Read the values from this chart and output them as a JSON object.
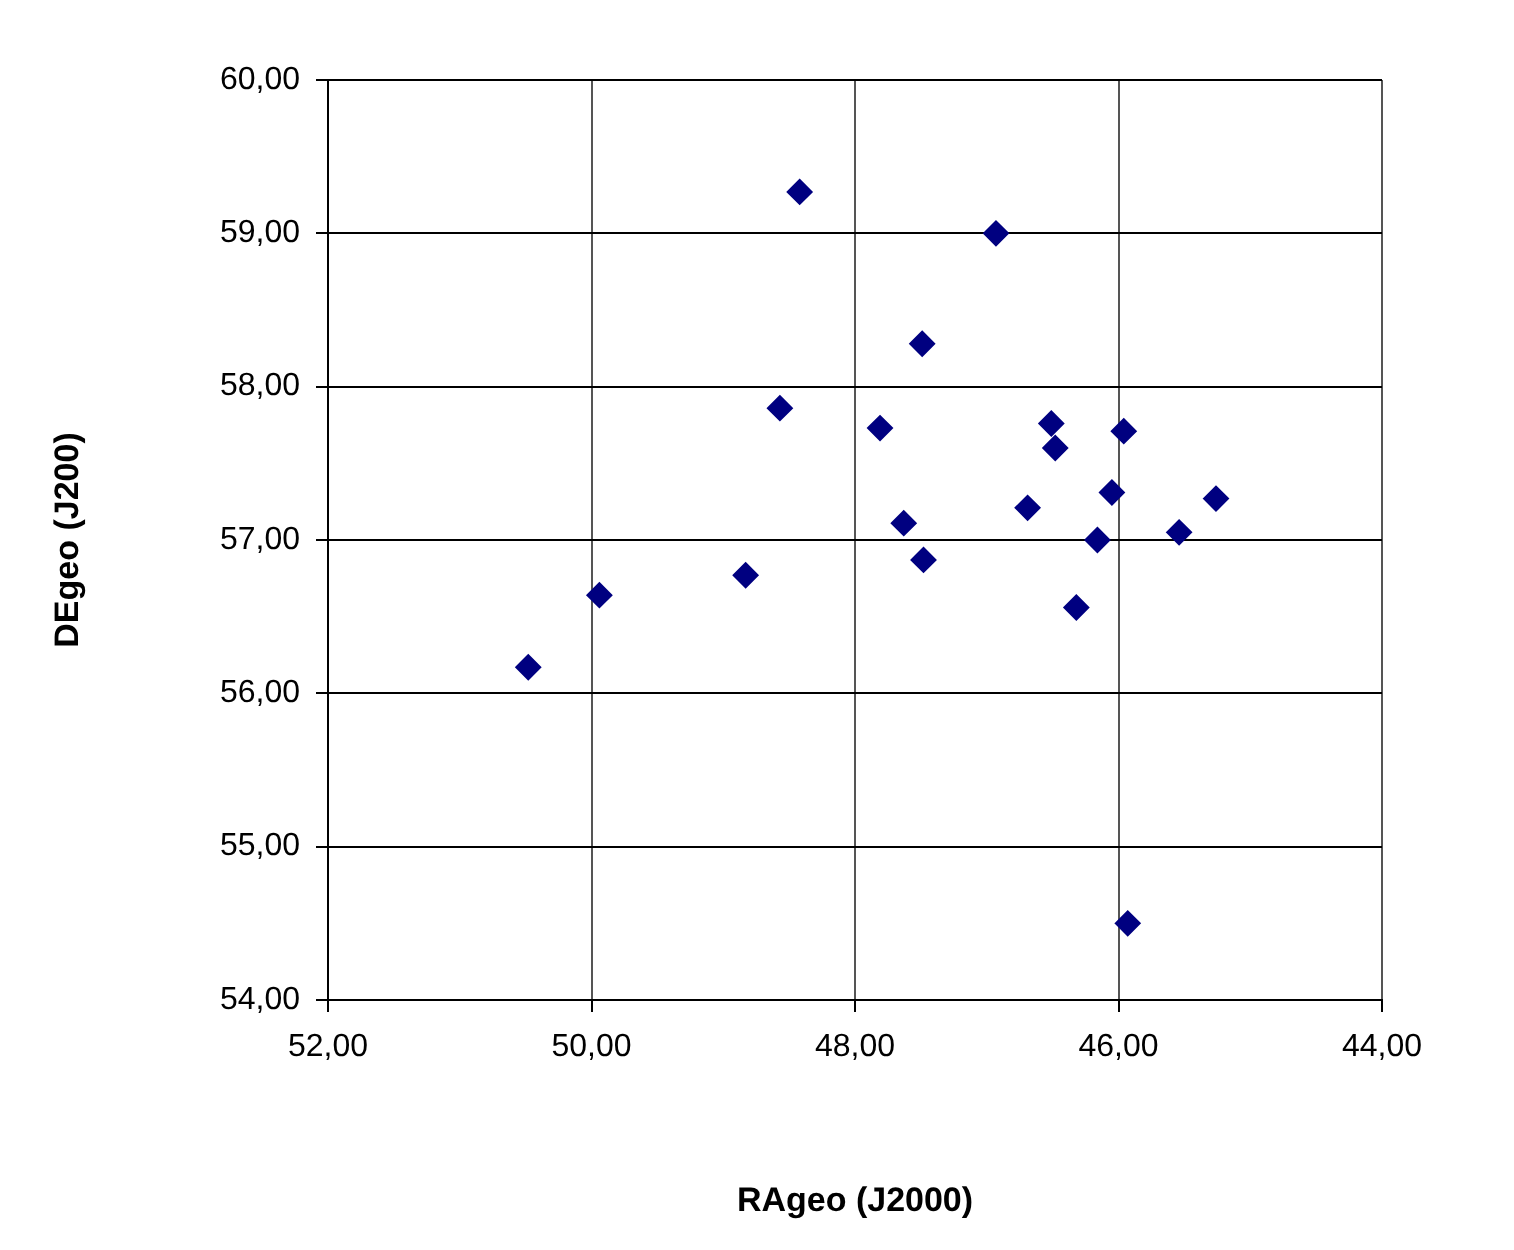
{
  "chart_data": {
    "type": "scatter",
    "xlabel": "RAgeo (J2000)",
    "ylabel": "DEgeo (J200)",
    "x": [
      48.42,
      46.93,
      47.49,
      48.57,
      47.81,
      46.51,
      46.48,
      45.96,
      46.05,
      46.69,
      47.63,
      45.26,
      45.54,
      46.16,
      47.48,
      46.32,
      48.83,
      49.94,
      50.48,
      45.93
    ],
    "series": [
      {
        "color": "#000080",
        "values": [
          59.27,
          59.0,
          58.28,
          57.86,
          57.73,
          57.76,
          57.6,
          57.71,
          57.31,
          57.21,
          57.11,
          57.27,
          57.05,
          57.0,
          56.87,
          56.56,
          56.77,
          56.64,
          56.17,
          54.5
        ]
      }
    ],
    "xlim": [
      52,
      44
    ],
    "ylim": [
      54,
      60
    ],
    "xticks": [
      {
        "value": 52,
        "label": "52,00"
      },
      {
        "value": 50,
        "label": "50,00"
      },
      {
        "value": 48,
        "label": "48,00"
      },
      {
        "value": 46,
        "label": "46,00"
      },
      {
        "value": 44,
        "label": "44,00"
      }
    ],
    "yticks": [
      {
        "value": 54,
        "label": "54,00"
      },
      {
        "value": 55,
        "label": "55,00"
      },
      {
        "value": 56,
        "label": "56,00"
      },
      {
        "value": 57,
        "label": "57,00"
      },
      {
        "value": 58,
        "label": "58,00"
      },
      {
        "value": 59,
        "label": "59,00"
      },
      {
        "value": 60,
        "label": "60,00"
      }
    ],
    "grid": true,
    "legend": false,
    "marker": "diamond"
  }
}
